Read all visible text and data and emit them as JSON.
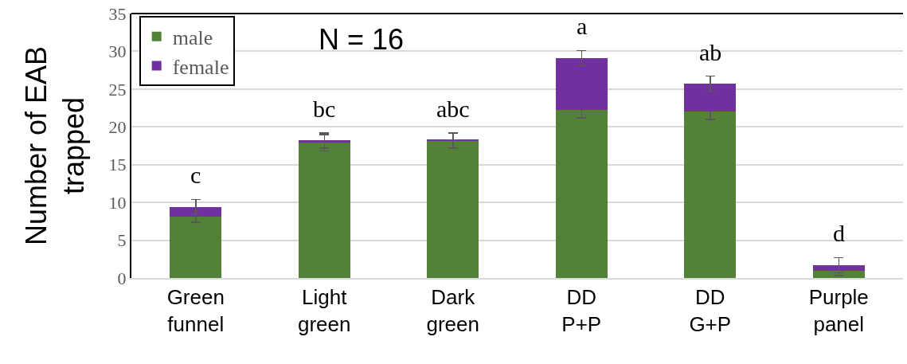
{
  "chart_data": {
    "type": "bar",
    "stacked": true,
    "ylabel": "Number of EAB\ntrapped",
    "categories": [
      "Green\nfunnel",
      "Light\ngreen",
      "Dark\ngreen",
      "DD\nP+P",
      "DD\nG+P",
      "Purple\npanel"
    ],
    "series": [
      {
        "name": "male",
        "color": "#538135",
        "values": [
          8.1,
          17.9,
          18.2,
          22.2,
          22.0,
          0.9
        ],
        "errors": [
          0.7,
          1.1,
          1.0,
          1.0,
          1.0,
          0.6
        ]
      },
      {
        "name": "female",
        "color": "#7030a0",
        "values": [
          1.3,
          0.3,
          0.1,
          6.9,
          3.7,
          0.8
        ],
        "errors": [
          1.0,
          1.0,
          null,
          1.0,
          1.0,
          1.0
        ]
      }
    ],
    "ylim": [
      0,
      35
    ],
    "yticks": [
      0,
      5,
      10,
      15,
      20,
      25,
      30,
      35
    ],
    "grid": "y",
    "legend": "top left",
    "annotations": [
      "N = 16",
      "c",
      "bc",
      "abc",
      "a",
      "ab",
      "d"
    ]
  }
}
